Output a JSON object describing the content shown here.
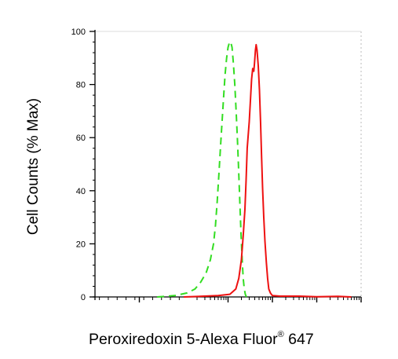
{
  "chart_data": {
    "type": "line",
    "xscale": "log",
    "xlim": [
      -100,
      1000000
    ],
    "ylim": [
      0,
      100
    ],
    "y_ticks": [
      0,
      20,
      40,
      60,
      80,
      100
    ],
    "y_tick_labels": [
      "0",
      "20",
      "40",
      "60",
      "80",
      "100"
    ],
    "ylabel": "Cell Counts (% Max)",
    "xlabel": {
      "prefix": "Peroxiredoxin 5-Alexa Fluor",
      "sup": "®",
      "suffix": " 647"
    },
    "series": [
      {
        "color": "#33dd22",
        "dash": "dashed",
        "points": [
          [
            40,
            0
          ],
          [
            80,
            0.5
          ],
          [
            120,
            1.5
          ],
          [
            180,
            3
          ],
          [
            240,
            5.5
          ],
          [
            320,
            9
          ],
          [
            400,
            14
          ],
          [
            470,
            20
          ],
          [
            520,
            27
          ],
          [
            570,
            36
          ],
          [
            620,
            46
          ],
          [
            680,
            57
          ],
          [
            740,
            67
          ],
          [
            800,
            76
          ],
          [
            860,
            84
          ],
          [
            930,
            90
          ],
          [
            1000,
            94
          ],
          [
            1080,
            96
          ],
          [
            1150,
            96
          ],
          [
            1230,
            94
          ],
          [
            1320,
            88
          ],
          [
            1420,
            80
          ],
          [
            1520,
            70
          ],
          [
            1630,
            59
          ],
          [
            1740,
            47
          ],
          [
            1850,
            35
          ],
          [
            1960,
            24
          ],
          [
            2080,
            14
          ],
          [
            2200,
            7
          ],
          [
            2320,
            3
          ],
          [
            2450,
            1
          ],
          [
            2600,
            0
          ]
        ]
      },
      {
        "color": "#ee1111",
        "dash": "solid",
        "points": [
          [
            100,
            0
          ],
          [
            600,
            0.5
          ],
          [
            1100,
            1
          ],
          [
            1500,
            3
          ],
          [
            1750,
            7
          ],
          [
            2000,
            14
          ],
          [
            2200,
            23
          ],
          [
            2400,
            33
          ],
          [
            2550,
            44
          ],
          [
            2700,
            56
          ],
          [
            2850,
            61
          ],
          [
            3000,
            66
          ],
          [
            3200,
            74
          ],
          [
            3400,
            82
          ],
          [
            3600,
            86
          ],
          [
            3800,
            85
          ],
          [
            3950,
            88
          ],
          [
            4150,
            93
          ],
          [
            4300,
            95
          ],
          [
            4500,
            93
          ],
          [
            4800,
            87
          ],
          [
            5100,
            78
          ],
          [
            5400,
            66
          ],
          [
            5700,
            53
          ],
          [
            6000,
            41
          ],
          [
            6400,
            30
          ],
          [
            6800,
            21
          ],
          [
            7300,
            13
          ],
          [
            7800,
            7
          ],
          [
            8300,
            3
          ],
          [
            9000,
            1.5
          ],
          [
            10000,
            0.5
          ],
          [
            15000,
            0.3
          ],
          [
            40000,
            0.3
          ],
          [
            100000,
            0.1
          ],
          [
            300000,
            0.2
          ],
          [
            600000,
            0
          ]
        ]
      }
    ]
  }
}
